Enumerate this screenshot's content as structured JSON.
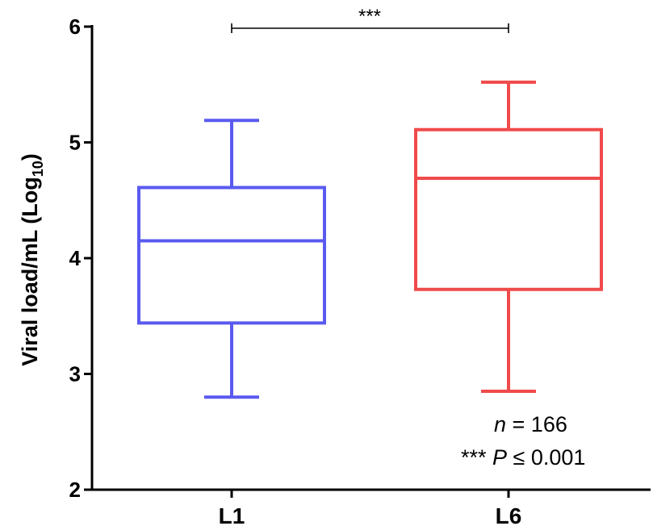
{
  "chart_data": {
    "type": "box",
    "categories": [
      "L1",
      "L6"
    ],
    "series": [
      {
        "category": "L1",
        "color": "#5a5af0",
        "min": 2.8,
        "q1": 3.44,
        "median": 4.15,
        "q3": 4.61,
        "max": 5.19
      },
      {
        "category": "L6",
        "color": "#f04a4a",
        "min": 2.85,
        "q1": 3.73,
        "median": 4.69,
        "q3": 5.11,
        "max": 5.52
      }
    ],
    "ylabel": {
      "main": "Viral load/mL (Log",
      "sub": "10",
      "close": ")"
    },
    "ylim": [
      2,
      6
    ],
    "yticks": [
      "2",
      "3",
      "4",
      "5",
      "6"
    ],
    "significance": {
      "label": "***",
      "between": [
        "L1",
        "L6"
      ]
    },
    "annotations": {
      "n_italic": "n",
      "n_rest": " = 166",
      "p_stars": "*** ",
      "p_italic": "P",
      "p_rest": " ≤ 0.001"
    },
    "grid": false,
    "legend": "none"
  }
}
